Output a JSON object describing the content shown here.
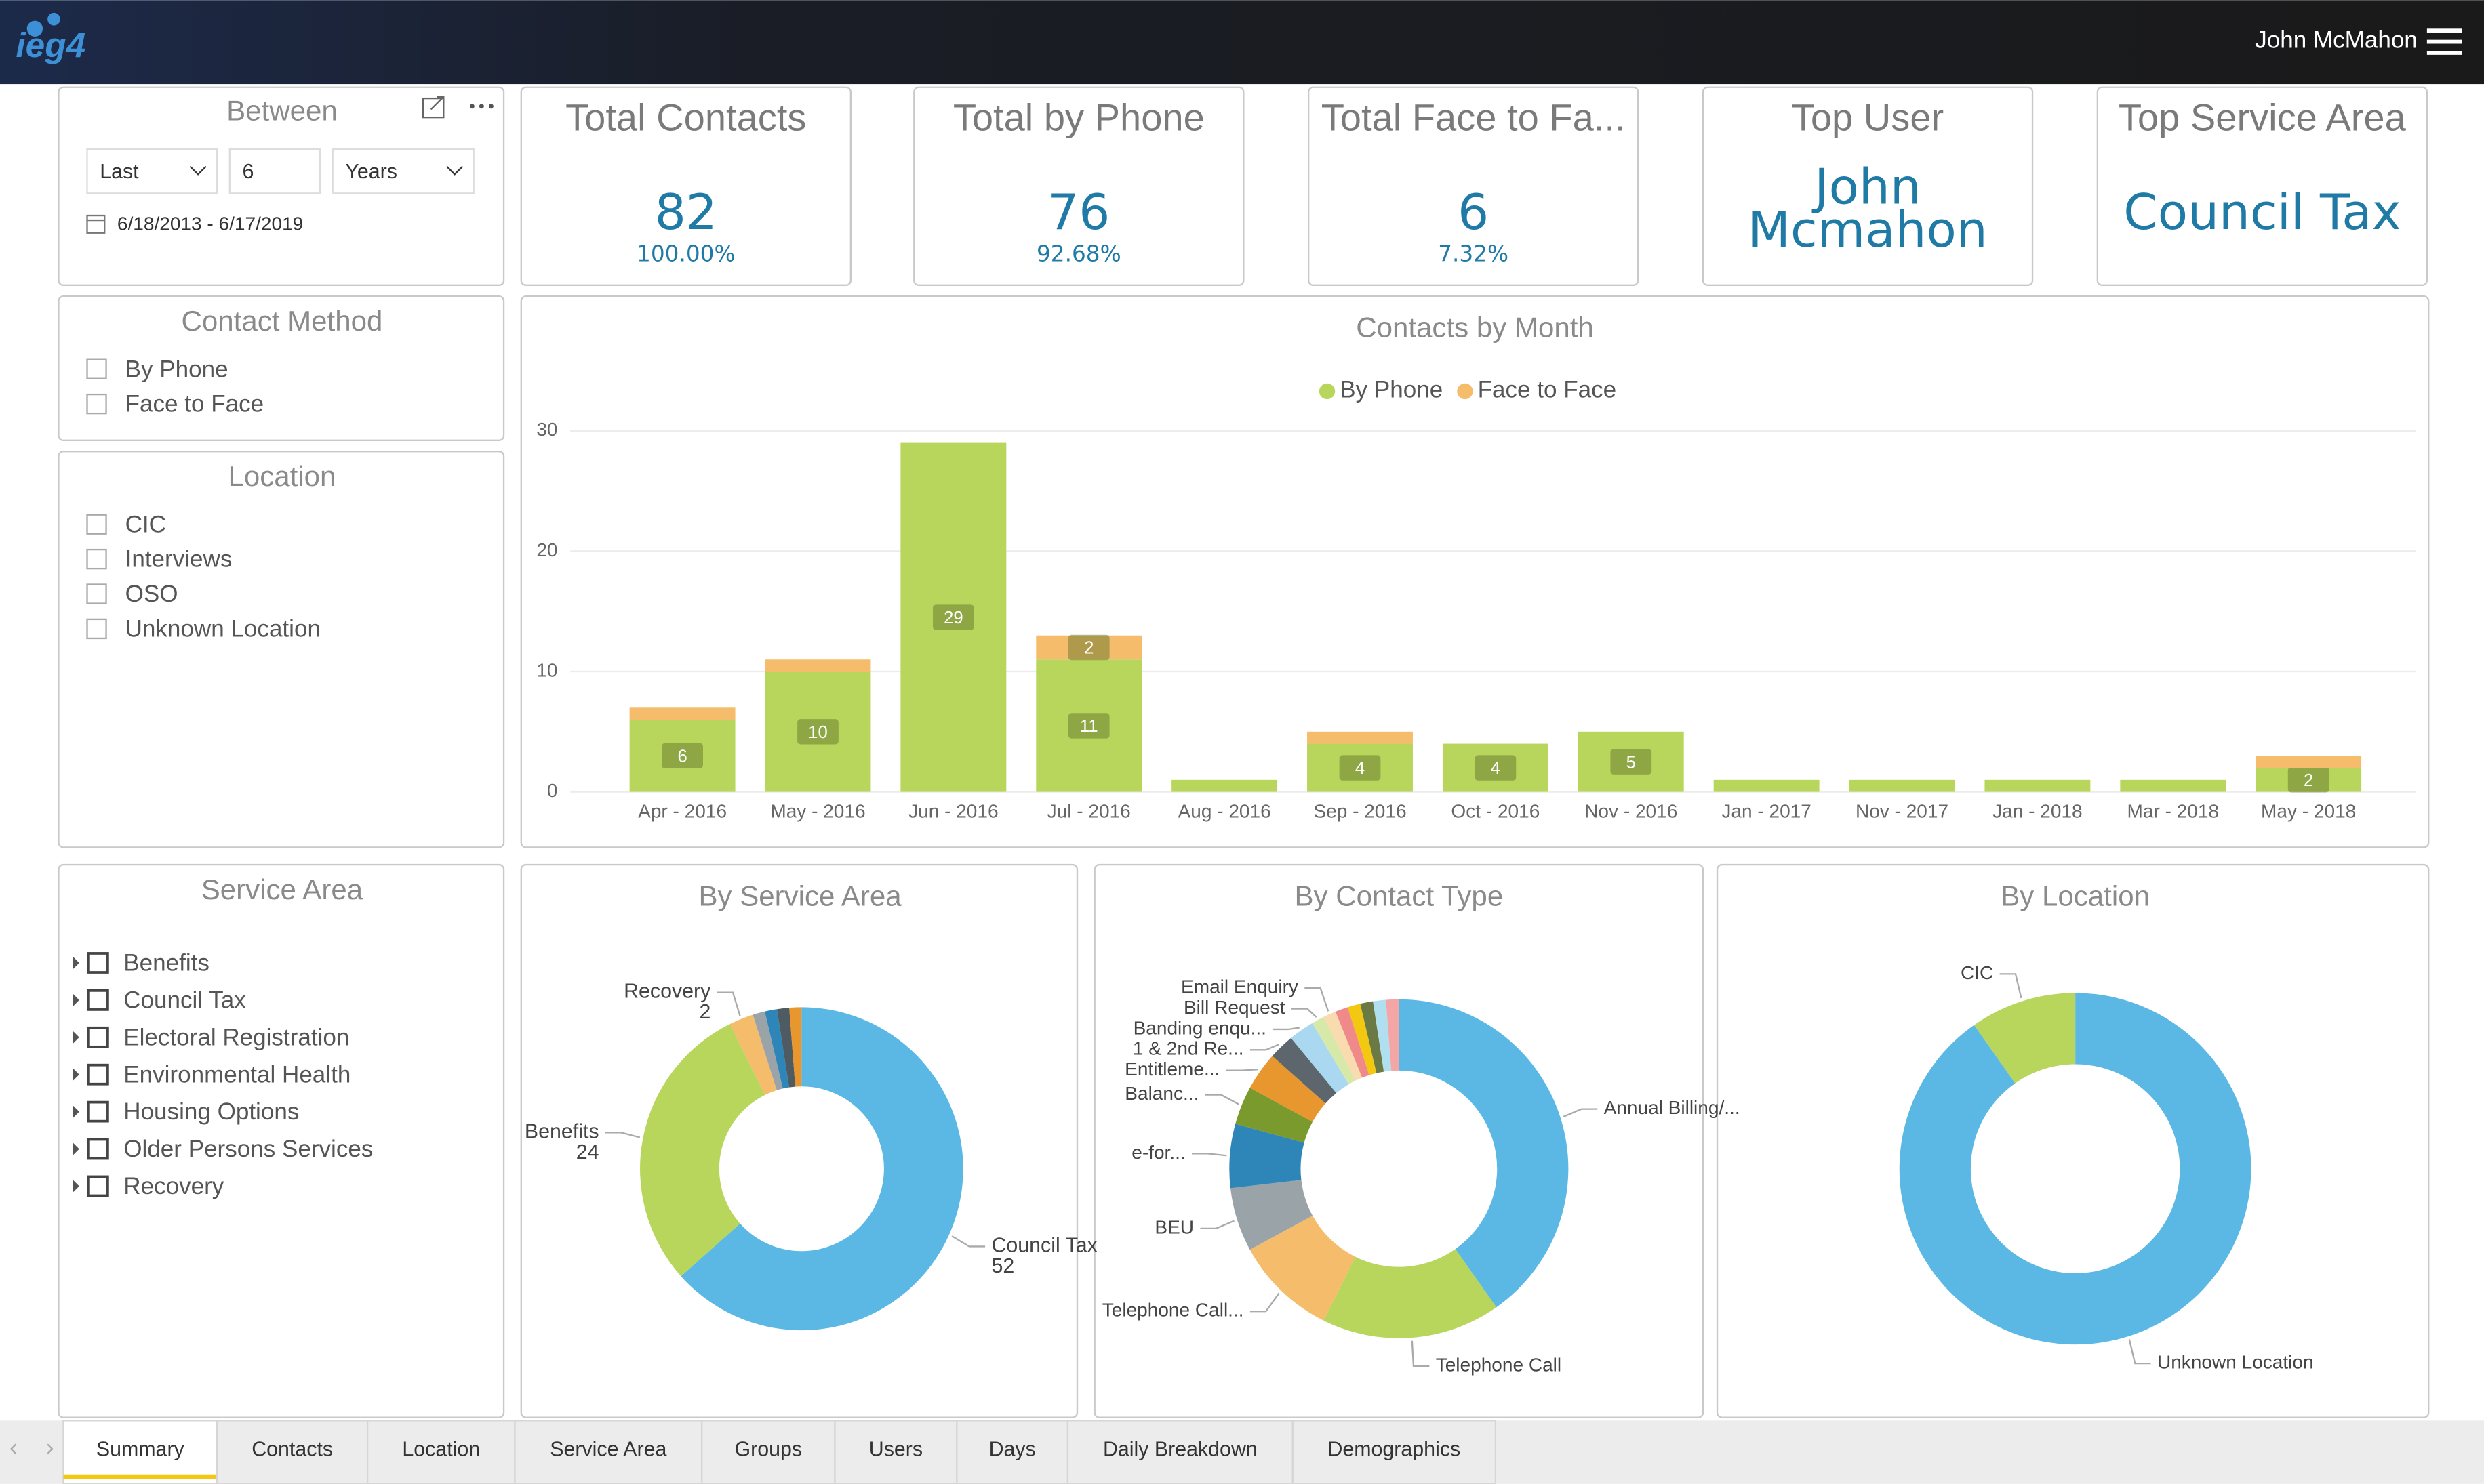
{
  "header": {
    "logo": "ieg4",
    "user": "John McMahon"
  },
  "filters": {
    "between": {
      "title": "Between",
      "mode": "Last",
      "count": "6",
      "unit": "Years",
      "range": "6/18/2013 - 6/17/2019"
    },
    "contact_method": {
      "title": "Contact Method",
      "options": [
        "By Phone",
        "Face to Face"
      ]
    },
    "location": {
      "title": "Location",
      "options": [
        "CIC",
        "Interviews",
        "OSO",
        "Unknown Location"
      ]
    },
    "service_area": {
      "title": "Service Area",
      "options": [
        "Benefits",
        "Council Tax",
        "Electoral Registration",
        "Environmental Health",
        "Housing Options",
        "Older Persons Services",
        "Recovery"
      ]
    }
  },
  "kpis": [
    {
      "title": "Total Contacts",
      "value": "82",
      "sub": "100.00%"
    },
    {
      "title": "Total by Phone",
      "value": "76",
      "sub": "92.68%"
    },
    {
      "title": "Total Face to Fa...",
      "value": "6",
      "sub": "7.32%"
    },
    {
      "title": "Top User",
      "lines": [
        "John",
        "Mcmahon"
      ]
    },
    {
      "title": "Top Service Area",
      "value": "Council Tax"
    }
  ],
  "chart_data": [
    {
      "type": "bar",
      "stacked": true,
      "title": "Contacts by Month",
      "categories": [
        "Apr - 2016",
        "May - 2016",
        "Jun - 2016",
        "Jul - 2016",
        "Aug - 2016",
        "Sep - 2016",
        "Oct - 2016",
        "Nov - 2016",
        "Jan - 2017",
        "Nov - 2017",
        "Jan - 2018",
        "Mar - 2018",
        "May - 2018"
      ],
      "series": [
        {
          "name": "By Phone",
          "color": "#b8d65c",
          "values": [
            6,
            10,
            29,
            11,
            1,
            4,
            4,
            5,
            1,
            1,
            1,
            1,
            2
          ]
        },
        {
          "name": "Face to Face",
          "color": "#f5bd6b",
          "values": [
            1,
            1,
            0,
            2,
            0,
            1,
            0,
            0,
            0,
            0,
            0,
            0,
            1
          ]
        }
      ],
      "ylim": [
        0,
        30
      ],
      "yticks": [
        0,
        10,
        20,
        30
      ],
      "grid": true,
      "legend": "top",
      "data_label_min": 2
    },
    {
      "type": "donut",
      "title": "By Service Area",
      "categories": [
        "Council Tax",
        "Benefits",
        "Recovery",
        null,
        null,
        null,
        null
      ],
      "values": [
        52,
        24,
        2,
        1,
        1,
        1,
        1
      ],
      "colors": [
        "#5bb8e5",
        "#b8d65c",
        "#f5bd6b",
        "#9aa4a8",
        "#2e86b8",
        "#4f5b62",
        "#e8962e"
      ],
      "show_values": true
    },
    {
      "type": "donut",
      "title": "By Contact Type",
      "categories": [
        "Annual Billing/...",
        "Telephone Call",
        "Telephone Call...",
        "BEU",
        "e-for...",
        "Balanc...",
        "Entitleme...",
        "1 & 2nd Re...",
        "Banding enqu...",
        "Bill Request",
        "Email Enquiry",
        null,
        null,
        null,
        null,
        null
      ],
      "values": [
        33,
        14,
        8,
        5,
        5,
        3,
        3,
        2,
        2,
        1,
        1,
        1,
        1,
        1,
        1,
        1
      ],
      "colors": [
        "#5bb8e5",
        "#b8d65c",
        "#f5bd6b",
        "#9aa4a8",
        "#2e86b8",
        "#7a9a2e",
        "#e8962e",
        "#5c666c",
        "#a9d8f0",
        "#d7e9a8",
        "#f8dcb0",
        "#f08a8a",
        "#f2c811",
        "#6b7a44",
        "#b0e0f0",
        "#f4a6a6"
      ],
      "show_values": false
    },
    {
      "type": "donut",
      "title": "By Location",
      "categories": [
        "Unknown Location",
        "CIC"
      ],
      "values": [
        74,
        8
      ],
      "colors": [
        "#5bb8e5",
        "#b8d65c"
      ],
      "show_values": false
    }
  ],
  "tabs": {
    "items": [
      "Summary",
      "Contacts",
      "Location",
      "Service Area",
      "Groups",
      "Users",
      "Days",
      "Daily Breakdown",
      "Demographics"
    ],
    "active": 0
  }
}
